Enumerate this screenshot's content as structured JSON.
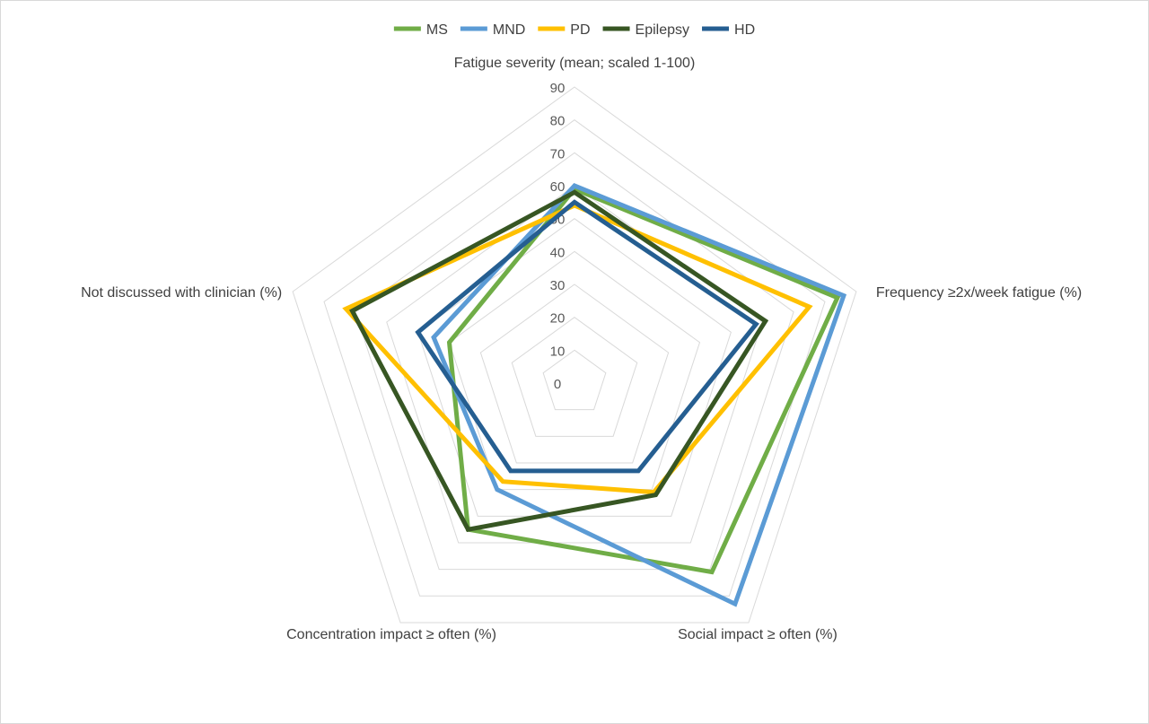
{
  "chart_data": {
    "type": "radar",
    "axes": [
      "Fatigue severity (mean; scaled 1-100)",
      "Frequency ≥2x/week fatigue (%)",
      "Social impact ≥ often  (%)",
      "Concentration impact ≥ often (%)",
      "Not discussed with clinician (%)"
    ],
    "ticks": [
      "0",
      "10",
      "20",
      "30",
      "40",
      "50",
      "60",
      "70",
      "80",
      "90"
    ],
    "range": [
      0,
      90
    ],
    "grid": true,
    "legend_position": "top",
    "series": [
      {
        "name": "MS",
        "color": "#70AD47",
        "values": [
          59,
          84,
          71,
          55,
          40
        ]
      },
      {
        "name": "MND",
        "color": "#5B9BD5",
        "values": [
          60,
          86,
          83,
          40,
          45
        ]
      },
      {
        "name": "PD",
        "color": "#FFC000",
        "values": [
          54,
          75,
          41,
          37,
          73
        ]
      },
      {
        "name": "Epilepsy",
        "color": "#375623",
        "values": [
          58,
          61,
          42,
          55,
          71
        ]
      },
      {
        "name": "HD",
        "color": "#255E91",
        "values": [
          55,
          58,
          33,
          33,
          50
        ]
      }
    ]
  }
}
